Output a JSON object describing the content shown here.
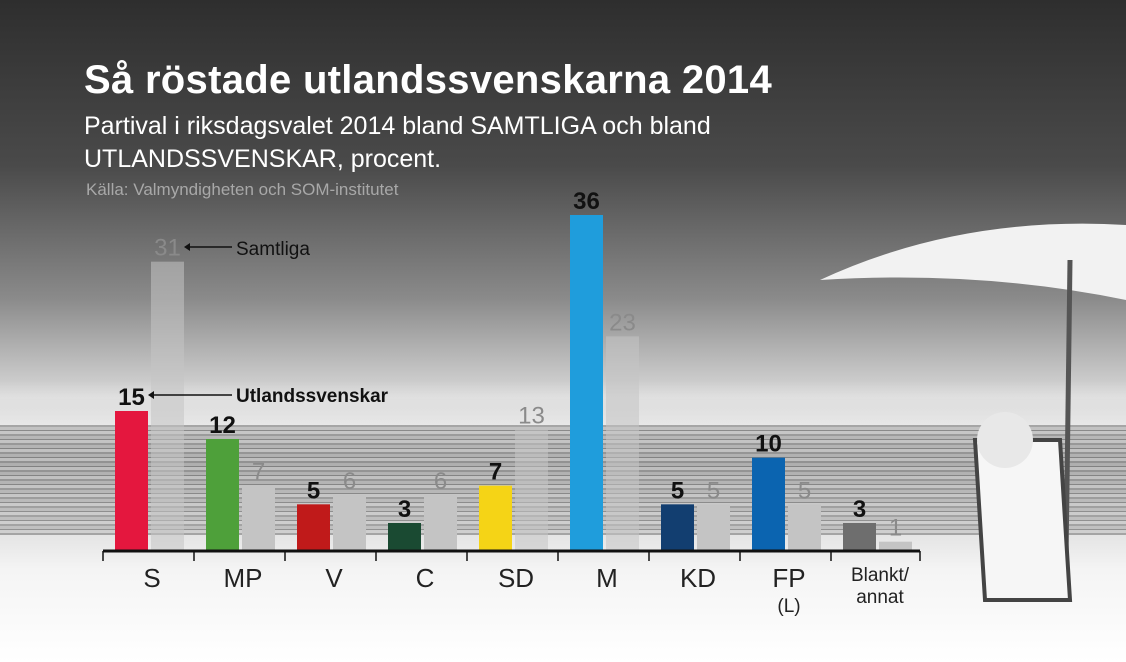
{
  "chart_data": {
    "type": "bar",
    "title": "Så röstade utlandssvenskarna 2014",
    "subtitle": "Partival i riksdagsvalet 2014 bland SAMTLIGA och bland UTLANDSSVENSKAR, procent.",
    "source": "Källa: Valmyndigheten och SOM-institutet",
    "categories": [
      "S",
      "MP",
      "V",
      "C",
      "SD",
      "M",
      "KD",
      "FP\n(L)",
      "Blankt/\nannat"
    ],
    "series": [
      {
        "name": "Utlandssvenskar",
        "values": [
          15,
          12,
          5,
          3,
          7,
          36,
          5,
          10,
          3
        ],
        "colors": [
          "#e4173e",
          "#4ea03a",
          "#c01a1a",
          "#1a4a32",
          "#f5d416",
          "#1f9ddc",
          "#123e70",
          "#0b64b0",
          "#6e6e6e"
        ]
      },
      {
        "name": "Samtliga",
        "values": [
          31,
          7,
          6,
          6,
          13,
          23,
          5,
          5,
          1
        ],
        "color": "#c4c4c4"
      }
    ],
    "ylim": [
      0,
      36
    ],
    "grid": false,
    "legend": "inline annotations with arrows"
  }
}
